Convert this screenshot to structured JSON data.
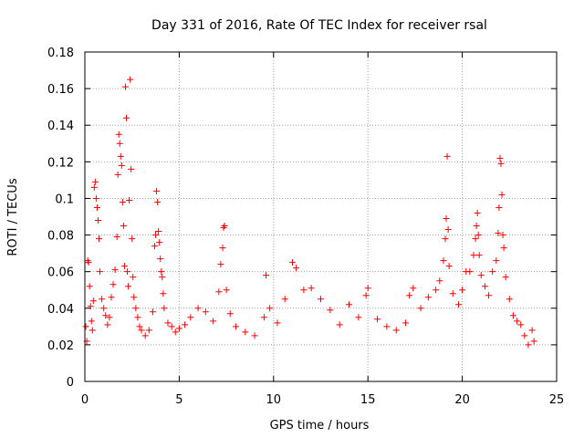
{
  "chart_data": {
    "type": "scatter",
    "marker": "+",
    "title": "Day 331 of 2016, Rate Of TEC Index for receiver rsal",
    "xlabel": "GPS time / hours",
    "ylabel": "ROTI / TECUs",
    "xlim": [
      0,
      25
    ],
    "ylim": [
      0,
      0.18
    ],
    "grid": true,
    "x_ticks": [
      0,
      5,
      10,
      15,
      20,
      25
    ],
    "x_tick_labels": [
      "0",
      "5",
      "10",
      "15",
      "20",
      "25"
    ],
    "y_ticks": [
      0,
      0.02,
      0.04,
      0.06,
      0.08,
      0.1,
      0.12,
      0.14,
      0.16,
      0.18
    ],
    "y_tick_labels": [
      "0",
      "0.02",
      "0.04",
      "0.06",
      "0.08",
      "0.1",
      "0.12",
      "0.14",
      "0.16",
      "0.18"
    ],
    "color": "#ff0000",
    "series": [
      {
        "name": "ROTI",
        "points": [
          [
            0.05,
            0.03
          ],
          [
            0.1,
            0.022
          ],
          [
            0.15,
            0.066
          ],
          [
            0.2,
            0.065
          ],
          [
            0.25,
            0.052
          ],
          [
            0.3,
            0.041
          ],
          [
            0.35,
            0.033
          ],
          [
            0.4,
            0.028
          ],
          [
            0.45,
            0.044
          ],
          [
            0.5,
            0.106
          ],
          [
            0.55,
            0.109
          ],
          [
            0.6,
            0.1
          ],
          [
            0.65,
            0.095
          ],
          [
            0.7,
            0.088
          ],
          [
            0.75,
            0.078
          ],
          [
            0.8,
            0.06
          ],
          [
            0.9,
            0.045
          ],
          [
            1.0,
            0.04
          ],
          [
            1.1,
            0.036
          ],
          [
            1.2,
            0.031
          ],
          [
            1.3,
            0.035
          ],
          [
            1.4,
            0.046
          ],
          [
            1.5,
            0.053
          ],
          [
            1.6,
            0.061
          ],
          [
            1.7,
            0.079
          ],
          [
            1.75,
            0.113
          ],
          [
            1.8,
            0.135
          ],
          [
            1.85,
            0.13
          ],
          [
            1.9,
            0.123
          ],
          [
            1.95,
            0.118
          ],
          [
            2.0,
            0.098
          ],
          [
            2.05,
            0.085
          ],
          [
            2.1,
            0.063
          ],
          [
            2.15,
            0.161
          ],
          [
            2.2,
            0.144
          ],
          [
            2.25,
            0.06
          ],
          [
            2.3,
            0.052
          ],
          [
            2.35,
            0.099
          ],
          [
            2.4,
            0.165
          ],
          [
            2.45,
            0.116
          ],
          [
            2.5,
            0.078
          ],
          [
            2.55,
            0.057
          ],
          [
            2.6,
            0.046
          ],
          [
            2.7,
            0.04
          ],
          [
            2.8,
            0.035
          ],
          [
            2.9,
            0.03
          ],
          [
            3.0,
            0.028
          ],
          [
            3.2,
            0.025
          ],
          [
            3.4,
            0.028
          ],
          [
            3.6,
            0.038
          ],
          [
            3.7,
            0.074
          ],
          [
            3.75,
            0.08
          ],
          [
            3.8,
            0.104
          ],
          [
            3.85,
            0.098
          ],
          [
            3.9,
            0.082
          ],
          [
            3.95,
            0.076
          ],
          [
            4.0,
            0.067
          ],
          [
            4.05,
            0.06
          ],
          [
            4.1,
            0.057
          ],
          [
            4.15,
            0.048
          ],
          [
            4.2,
            0.04
          ],
          [
            4.4,
            0.032
          ],
          [
            4.6,
            0.03
          ],
          [
            4.8,
            0.027
          ],
          [
            5.0,
            0.029
          ],
          [
            5.3,
            0.031
          ],
          [
            5.6,
            0.035
          ],
          [
            6.0,
            0.04
          ],
          [
            6.4,
            0.038
          ],
          [
            6.8,
            0.033
          ],
          [
            7.1,
            0.049
          ],
          [
            7.2,
            0.064
          ],
          [
            7.3,
            0.073
          ],
          [
            7.35,
            0.084
          ],
          [
            7.4,
            0.085
          ],
          [
            7.5,
            0.05
          ],
          [
            7.7,
            0.037
          ],
          [
            8.0,
            0.03
          ],
          [
            8.5,
            0.027
          ],
          [
            9.0,
            0.025
          ],
          [
            9.5,
            0.035
          ],
          [
            9.6,
            0.058
          ],
          [
            9.8,
            0.04
          ],
          [
            10.2,
            0.032
          ],
          [
            10.6,
            0.045
          ],
          [
            11.0,
            0.065
          ],
          [
            11.2,
            0.062
          ],
          [
            11.6,
            0.05
          ],
          [
            12.0,
            0.051
          ],
          [
            12.5,
            0.045
          ],
          [
            13.0,
            0.039
          ],
          [
            13.5,
            0.031
          ],
          [
            14.0,
            0.042
          ],
          [
            14.5,
            0.035
          ],
          [
            14.9,
            0.047
          ],
          [
            15.0,
            0.051
          ],
          [
            15.5,
            0.034
          ],
          [
            16.0,
            0.03
          ],
          [
            16.5,
            0.028
          ],
          [
            17.0,
            0.032
          ],
          [
            17.2,
            0.047
          ],
          [
            17.4,
            0.051
          ],
          [
            17.8,
            0.04
          ],
          [
            18.2,
            0.046
          ],
          [
            18.6,
            0.05
          ],
          [
            18.8,
            0.055
          ],
          [
            19.0,
            0.066
          ],
          [
            19.1,
            0.078
          ],
          [
            19.15,
            0.089
          ],
          [
            19.2,
            0.123
          ],
          [
            19.25,
            0.083
          ],
          [
            19.3,
            0.063
          ],
          [
            19.5,
            0.048
          ],
          [
            19.8,
            0.042
          ],
          [
            20.0,
            0.05
          ],
          [
            20.2,
            0.06
          ],
          [
            20.4,
            0.06
          ],
          [
            20.6,
            0.069
          ],
          [
            20.7,
            0.078
          ],
          [
            20.75,
            0.085
          ],
          [
            20.8,
            0.092
          ],
          [
            20.85,
            0.08
          ],
          [
            20.9,
            0.069
          ],
          [
            21.0,
            0.058
          ],
          [
            21.2,
            0.052
          ],
          [
            21.4,
            0.047
          ],
          [
            21.6,
            0.06
          ],
          [
            21.8,
            0.066
          ],
          [
            21.9,
            0.081
          ],
          [
            21.95,
            0.095
          ],
          [
            22.0,
            0.122
          ],
          [
            22.05,
            0.119
          ],
          [
            22.1,
            0.102
          ],
          [
            22.15,
            0.08
          ],
          [
            22.2,
            0.073
          ],
          [
            22.3,
            0.057
          ],
          [
            22.5,
            0.045
          ],
          [
            22.7,
            0.036
          ],
          [
            22.9,
            0.033
          ],
          [
            23.1,
            0.031
          ],
          [
            23.3,
            0.025
          ],
          [
            23.5,
            0.02
          ],
          [
            23.7,
            0.028
          ],
          [
            23.8,
            0.022
          ]
        ]
      }
    ]
  }
}
